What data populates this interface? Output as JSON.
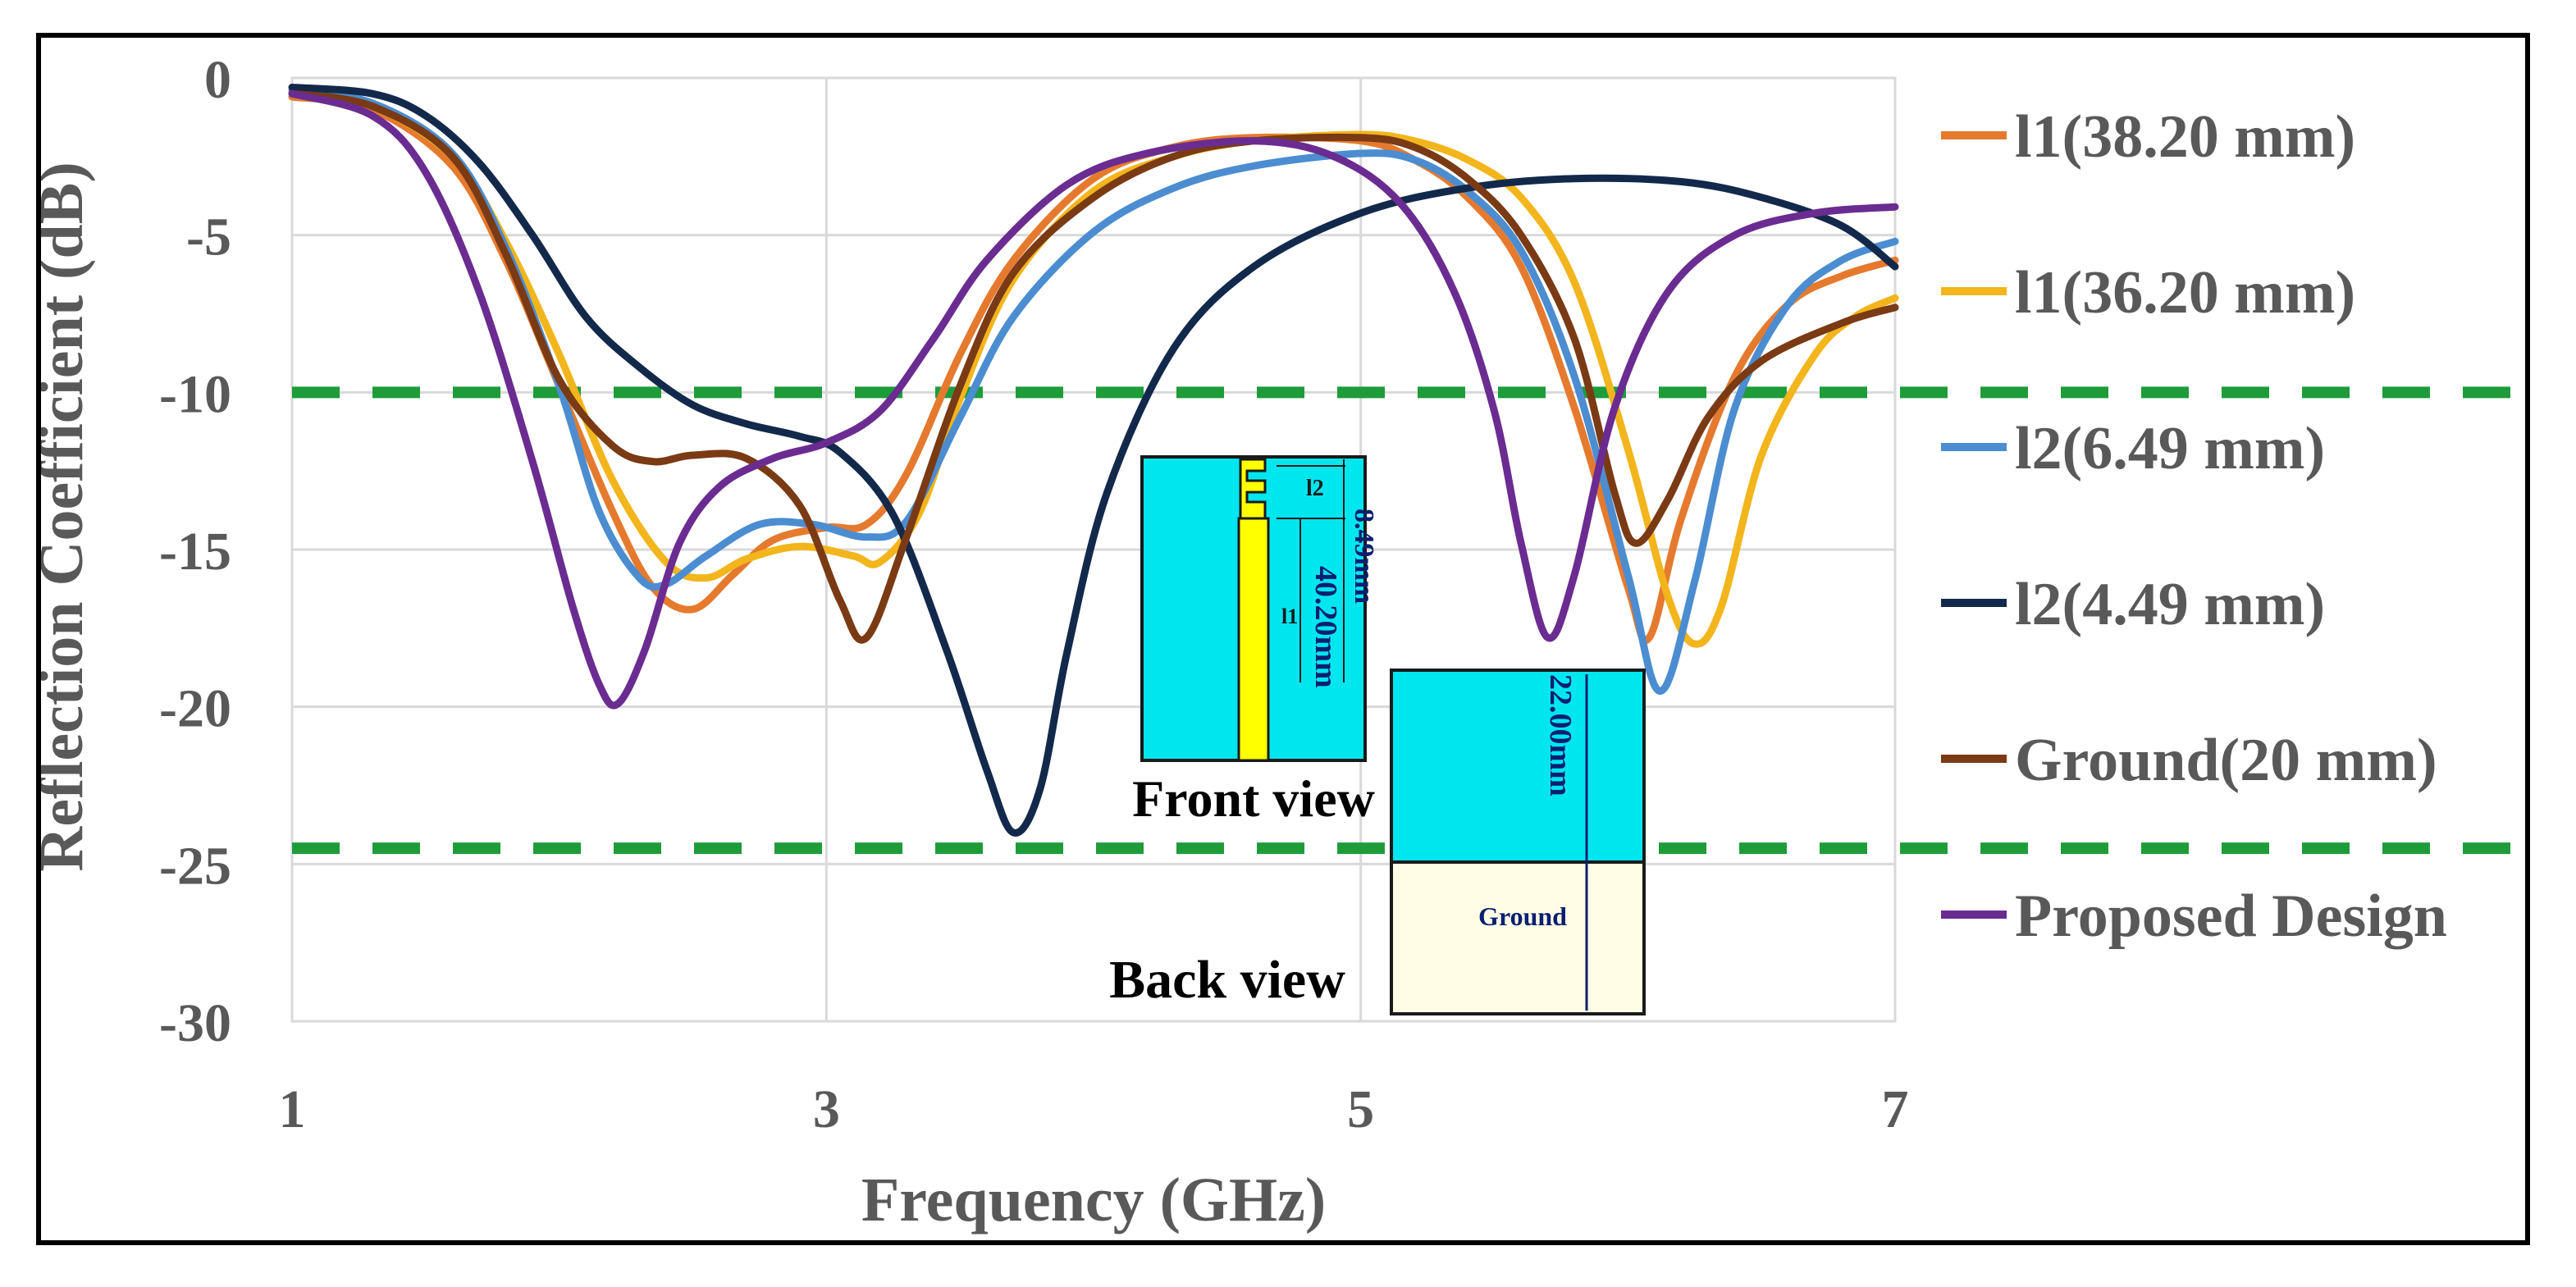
{
  "chart_data": {
    "type": "line",
    "title": "",
    "xlabel": "Frequency (GHz)",
    "ylabel": "Reflection Coefficient (dB)",
    "xlim": [
      1,
      7
    ],
    "ylim": [
      -30,
      0
    ],
    "x_ticks": [
      "1",
      "3",
      "5",
      "7"
    ],
    "y_ticks": [
      "0",
      "-5",
      "-10",
      "-15",
      "-20",
      "-25",
      "-30"
    ],
    "grid": true,
    "legend_position": "right",
    "reference_lines": [
      {
        "y": -10,
        "color": "#1e9c3a",
        "style": "dashed"
      },
      {
        "y": -24.5,
        "color": "#1e9c3a",
        "style": "dashed"
      }
    ],
    "series": [
      {
        "name": "l1(38.20 mm)",
        "color": "#e57a2e",
        "points": [
          [
            1,
            -0.6
          ],
          [
            1.3,
            -1.0
          ],
          [
            1.6,
            -2.8
          ],
          [
            1.8,
            -5.8
          ],
          [
            2.0,
            -9.8
          ],
          [
            2.2,
            -13.8
          ],
          [
            2.35,
            -16.2
          ],
          [
            2.5,
            -16.9
          ],
          [
            2.65,
            -15.8
          ],
          [
            2.8,
            -14.7
          ],
          [
            3.0,
            -14.3
          ],
          [
            3.15,
            -14.2
          ],
          [
            3.3,
            -12.6
          ],
          [
            3.5,
            -8.8
          ],
          [
            3.7,
            -5.8
          ],
          [
            4.0,
            -3.2
          ],
          [
            4.3,
            -2.2
          ],
          [
            4.6,
            -1.9
          ],
          [
            5.0,
            -2.0
          ],
          [
            5.2,
            -2.6
          ],
          [
            5.4,
            -3.8
          ],
          [
            5.6,
            -6.0
          ],
          [
            5.8,
            -10.5
          ],
          [
            6.0,
            -16.2
          ],
          [
            6.08,
            -17.8
          ],
          [
            6.2,
            -14.0
          ],
          [
            6.4,
            -9.5
          ],
          [
            6.6,
            -7.2
          ],
          [
            6.8,
            -6.3
          ],
          [
            7.0,
            -5.8
          ]
        ]
      },
      {
        "name": "l1(36.20 mm)",
        "color": "#f2b51c",
        "points": [
          [
            1,
            -0.5
          ],
          [
            1.3,
            -0.9
          ],
          [
            1.6,
            -2.5
          ],
          [
            1.8,
            -5.2
          ],
          [
            2.0,
            -8.8
          ],
          [
            2.2,
            -12.8
          ],
          [
            2.4,
            -15.4
          ],
          [
            2.55,
            -15.9
          ],
          [
            2.7,
            -15.3
          ],
          [
            2.9,
            -14.9
          ],
          [
            3.1,
            -15.2
          ],
          [
            3.2,
            -15.4
          ],
          [
            3.35,
            -13.8
          ],
          [
            3.5,
            -10.2
          ],
          [
            3.7,
            -6.4
          ],
          [
            4.0,
            -3.6
          ],
          [
            4.3,
            -2.5
          ],
          [
            4.6,
            -2.0
          ],
          [
            5.0,
            -1.8
          ],
          [
            5.2,
            -2.0
          ],
          [
            5.4,
            -2.6
          ],
          [
            5.6,
            -3.8
          ],
          [
            5.8,
            -6.5
          ],
          [
            6.0,
            -11.8
          ],
          [
            6.15,
            -16.5
          ],
          [
            6.25,
            -18.0
          ],
          [
            6.35,
            -16.8
          ],
          [
            6.5,
            -12.0
          ],
          [
            6.7,
            -8.8
          ],
          [
            6.85,
            -7.6
          ],
          [
            7.0,
            -7.0
          ]
        ]
      },
      {
        "name": "l2(6.49 mm)",
        "color": "#4b8dd0",
        "points": [
          [
            1,
            -0.4
          ],
          [
            1.3,
            -0.8
          ],
          [
            1.6,
            -2.4
          ],
          [
            1.8,
            -5.4
          ],
          [
            2.0,
            -9.8
          ],
          [
            2.15,
            -13.8
          ],
          [
            2.3,
            -15.9
          ],
          [
            2.4,
            -16.1
          ],
          [
            2.55,
            -15.2
          ],
          [
            2.75,
            -14.2
          ],
          [
            2.95,
            -14.2
          ],
          [
            3.15,
            -14.6
          ],
          [
            3.3,
            -14.1
          ],
          [
            3.5,
            -10.8
          ],
          [
            3.7,
            -7.6
          ],
          [
            4.0,
            -4.9
          ],
          [
            4.3,
            -3.5
          ],
          [
            4.6,
            -2.8
          ],
          [
            5.0,
            -2.4
          ],
          [
            5.2,
            -2.6
          ],
          [
            5.4,
            -3.6
          ],
          [
            5.6,
            -5.5
          ],
          [
            5.8,
            -9.5
          ],
          [
            6.0,
            -15.8
          ],
          [
            6.12,
            -19.5
          ],
          [
            6.25,
            -16.0
          ],
          [
            6.4,
            -10.5
          ],
          [
            6.6,
            -7.2
          ],
          [
            6.8,
            -5.8
          ],
          [
            7.0,
            -5.2
          ]
        ]
      },
      {
        "name": "l2(4.49 mm)",
        "color": "#13294b",
        "points": [
          [
            1,
            -0.3
          ],
          [
            1.3,
            -0.5
          ],
          [
            1.5,
            -1.2
          ],
          [
            1.7,
            -2.7
          ],
          [
            1.9,
            -5.0
          ],
          [
            2.1,
            -7.6
          ],
          [
            2.3,
            -9.2
          ],
          [
            2.5,
            -10.4
          ],
          [
            2.7,
            -11.0
          ],
          [
            2.9,
            -11.4
          ],
          [
            3.05,
            -11.9
          ],
          [
            3.25,
            -13.9
          ],
          [
            3.45,
            -18.2
          ],
          [
            3.6,
            -22.0
          ],
          [
            3.7,
            -24.0
          ],
          [
            3.8,
            -22.6
          ],
          [
            3.9,
            -18.3
          ],
          [
            4.05,
            -13.2
          ],
          [
            4.3,
            -8.6
          ],
          [
            4.6,
            -6.0
          ],
          [
            5.0,
            -4.3
          ],
          [
            5.4,
            -3.5
          ],
          [
            5.8,
            -3.2
          ],
          [
            6.2,
            -3.3
          ],
          [
            6.5,
            -3.8
          ],
          [
            6.8,
            -4.7
          ],
          [
            7.0,
            -6.0
          ]
        ]
      },
      {
        "name": "Ground(20 mm)",
        "color": "#7a3a14",
        "points": [
          [
            1,
            -0.5
          ],
          [
            1.3,
            -0.9
          ],
          [
            1.6,
            -2.5
          ],
          [
            1.8,
            -5.6
          ],
          [
            2.0,
            -9.6
          ],
          [
            2.2,
            -11.7
          ],
          [
            2.35,
            -12.2
          ],
          [
            2.5,
            -12.0
          ],
          [
            2.7,
            -12.1
          ],
          [
            2.9,
            -13.6
          ],
          [
            3.05,
            -16.6
          ],
          [
            3.15,
            -17.8
          ],
          [
            3.3,
            -14.6
          ],
          [
            3.5,
            -9.8
          ],
          [
            3.7,
            -6.2
          ],
          [
            4.0,
            -3.8
          ],
          [
            4.3,
            -2.5
          ],
          [
            4.6,
            -2.0
          ],
          [
            5.0,
            -1.9
          ],
          [
            5.2,
            -2.2
          ],
          [
            5.4,
            -3.2
          ],
          [
            5.6,
            -5.0
          ],
          [
            5.8,
            -8.3
          ],
          [
            5.95,
            -13.2
          ],
          [
            6.03,
            -14.8
          ],
          [
            6.15,
            -13.4
          ],
          [
            6.3,
            -10.8
          ],
          [
            6.5,
            -9.0
          ],
          [
            6.8,
            -7.8
          ],
          [
            7.0,
            -7.3
          ]
        ]
      },
      {
        "name": "Proposed Design",
        "color": "#6a2c91",
        "points": [
          [
            1,
            -0.5
          ],
          [
            1.3,
            -1.2
          ],
          [
            1.5,
            -3.0
          ],
          [
            1.7,
            -6.8
          ],
          [
            1.9,
            -12.2
          ],
          [
            2.05,
            -16.8
          ],
          [
            2.15,
            -19.3
          ],
          [
            2.22,
            -19.9
          ],
          [
            2.32,
            -18.2
          ],
          [
            2.45,
            -14.8
          ],
          [
            2.6,
            -13.0
          ],
          [
            2.8,
            -12.1
          ],
          [
            3.0,
            -11.6
          ],
          [
            3.2,
            -10.6
          ],
          [
            3.4,
            -8.3
          ],
          [
            3.6,
            -5.8
          ],
          [
            3.9,
            -3.4
          ],
          [
            4.2,
            -2.4
          ],
          [
            4.6,
            -2.0
          ],
          [
            4.9,
            -2.5
          ],
          [
            5.15,
            -4.0
          ],
          [
            5.35,
            -6.8
          ],
          [
            5.5,
            -10.6
          ],
          [
            5.6,
            -14.8
          ],
          [
            5.7,
            -17.8
          ],
          [
            5.8,
            -15.8
          ],
          [
            5.95,
            -10.5
          ],
          [
            6.15,
            -6.8
          ],
          [
            6.4,
            -5.0
          ],
          [
            6.7,
            -4.3
          ],
          [
            7.0,
            -4.1
          ]
        ]
      }
    ]
  },
  "inset_front": {
    "caption": "Front view",
    "dim_l2": "l2",
    "dim_l1": "l1",
    "dim_840": "8.49mm",
    "dim_4020": "40.20mm"
  },
  "inset_back": {
    "caption": "Back view",
    "ground_label": "Ground",
    "dim_2200": "22.00mm"
  },
  "colors": {
    "grid": "#d9d9d9",
    "axis_text": "#595959",
    "reference_line": "#1e9c3a",
    "inset_substrate": "#00e6ef",
    "inset_patch": "#ffff00",
    "inset_ground": "#fffde6"
  }
}
